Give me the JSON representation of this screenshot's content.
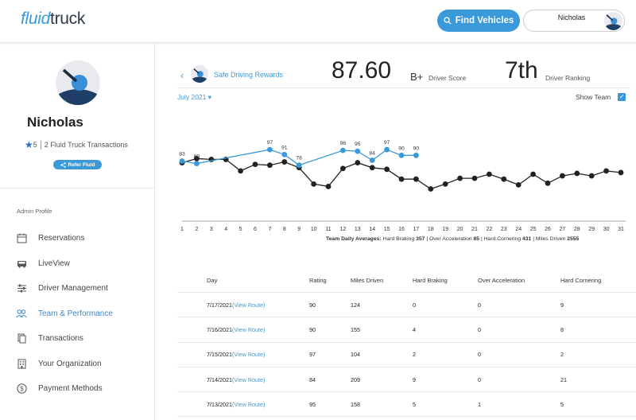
{
  "header": {
    "logo_part1": "fluid",
    "logo_part2": "truck",
    "find_button": "Find Vehicles",
    "user_name": "Nicholas"
  },
  "profile": {
    "name": "Nicholas",
    "rating": "5",
    "transactions": "2 Fluid Truck Transactions",
    "refer_button": "Refer Fluid"
  },
  "sidebar": {
    "section_label": "Admin Profile",
    "items": [
      {
        "label": "Reservations",
        "icon": "calendar-icon"
      },
      {
        "label": "LiveView",
        "icon": "truck-icon"
      },
      {
        "label": "Driver Management",
        "icon": "sliders-icon"
      },
      {
        "label": "Team & Performance",
        "icon": "users-icon"
      },
      {
        "label": "Transactions",
        "icon": "documents-icon"
      },
      {
        "label": "Your Organization",
        "icon": "building-icon"
      },
      {
        "label": "Payment Methods",
        "icon": "dollar-icon"
      }
    ],
    "active_index": 3
  },
  "summary": {
    "title": "Safe Driving Rewards",
    "score": "87.60",
    "grade": "B+",
    "score_label": "Driver Score",
    "rank": "7th",
    "rank_label": "Driver Ranking",
    "month": "July 2021",
    "show_team_label": "Show Team"
  },
  "colors": {
    "accent": "#3a9ad9",
    "team_line": "#222222"
  },
  "chart_data": {
    "type": "line",
    "x_ticks": [
      1,
      2,
      3,
      4,
      5,
      6,
      7,
      8,
      9,
      10,
      11,
      12,
      13,
      14,
      15,
      16,
      17,
      18,
      19,
      20,
      21,
      22,
      23,
      24,
      25,
      26,
      27,
      28,
      29,
      30,
      31
    ],
    "series": [
      {
        "x": [
          1,
          2,
          7,
          8,
          9,
          12,
          13,
          14,
          15,
          16,
          17
        ],
        "values": [
          83,
          80,
          97,
          91,
          78,
          96,
          95,
          84,
          97,
          90,
          90
        ]
      },
      {
        "x": [
          1,
          2,
          3,
          4,
          5,
          6,
          7,
          8,
          9,
          10,
          11,
          12,
          13,
          14,
          15,
          16,
          17,
          18,
          19,
          20,
          21,
          22,
          23,
          24,
          25,
          26,
          27,
          28,
          29,
          30,
          31
        ],
        "values": [
          81,
          86,
          85,
          85,
          71,
          79,
          78,
          82,
          75,
          55,
          52,
          74,
          81,
          75,
          73,
          61,
          61,
          49,
          55,
          62,
          62,
          67,
          61,
          54,
          67,
          56,
          65,
          68,
          65,
          71,
          69
        ],
        "note_hidden": false
      }
    ],
    "legend": "none",
    "grid": false
  },
  "team_averages": {
    "label": "Team Daily Averages:",
    "hard_braking_label": "Hard Braking",
    "hard_braking": "357",
    "over_accel_label": "Over Acceleration",
    "over_accel": "85",
    "hard_cornering_label": "Hard Cornering",
    "hard_cornering": "431",
    "miles_label": "Miles Driven",
    "miles": "2555"
  },
  "table": {
    "headers": [
      "Day",
      "Rating",
      "Miles Driven",
      "Hard Braking",
      "Over Acceleration",
      "Hard Cornering"
    ],
    "link_text": "(View Route)",
    "rows": [
      {
        "day": "7/17/2021",
        "rating": "90",
        "miles": "124",
        "braking": "0",
        "accel": "0",
        "cornering": "9"
      },
      {
        "day": "7/16/2021",
        "rating": "90",
        "miles": "155",
        "braking": "4",
        "accel": "0",
        "cornering": "8"
      },
      {
        "day": "7/15/2021",
        "rating": "97",
        "miles": "104",
        "braking": "2",
        "accel": "0",
        "cornering": "2"
      },
      {
        "day": "7/14/2021",
        "rating": "84",
        "miles": "209",
        "braking": "9",
        "accel": "0",
        "cornering": "21"
      },
      {
        "day": "7/13/2021",
        "rating": "95",
        "miles": "158",
        "braking": "5",
        "accel": "1",
        "cornering": "5"
      }
    ]
  }
}
